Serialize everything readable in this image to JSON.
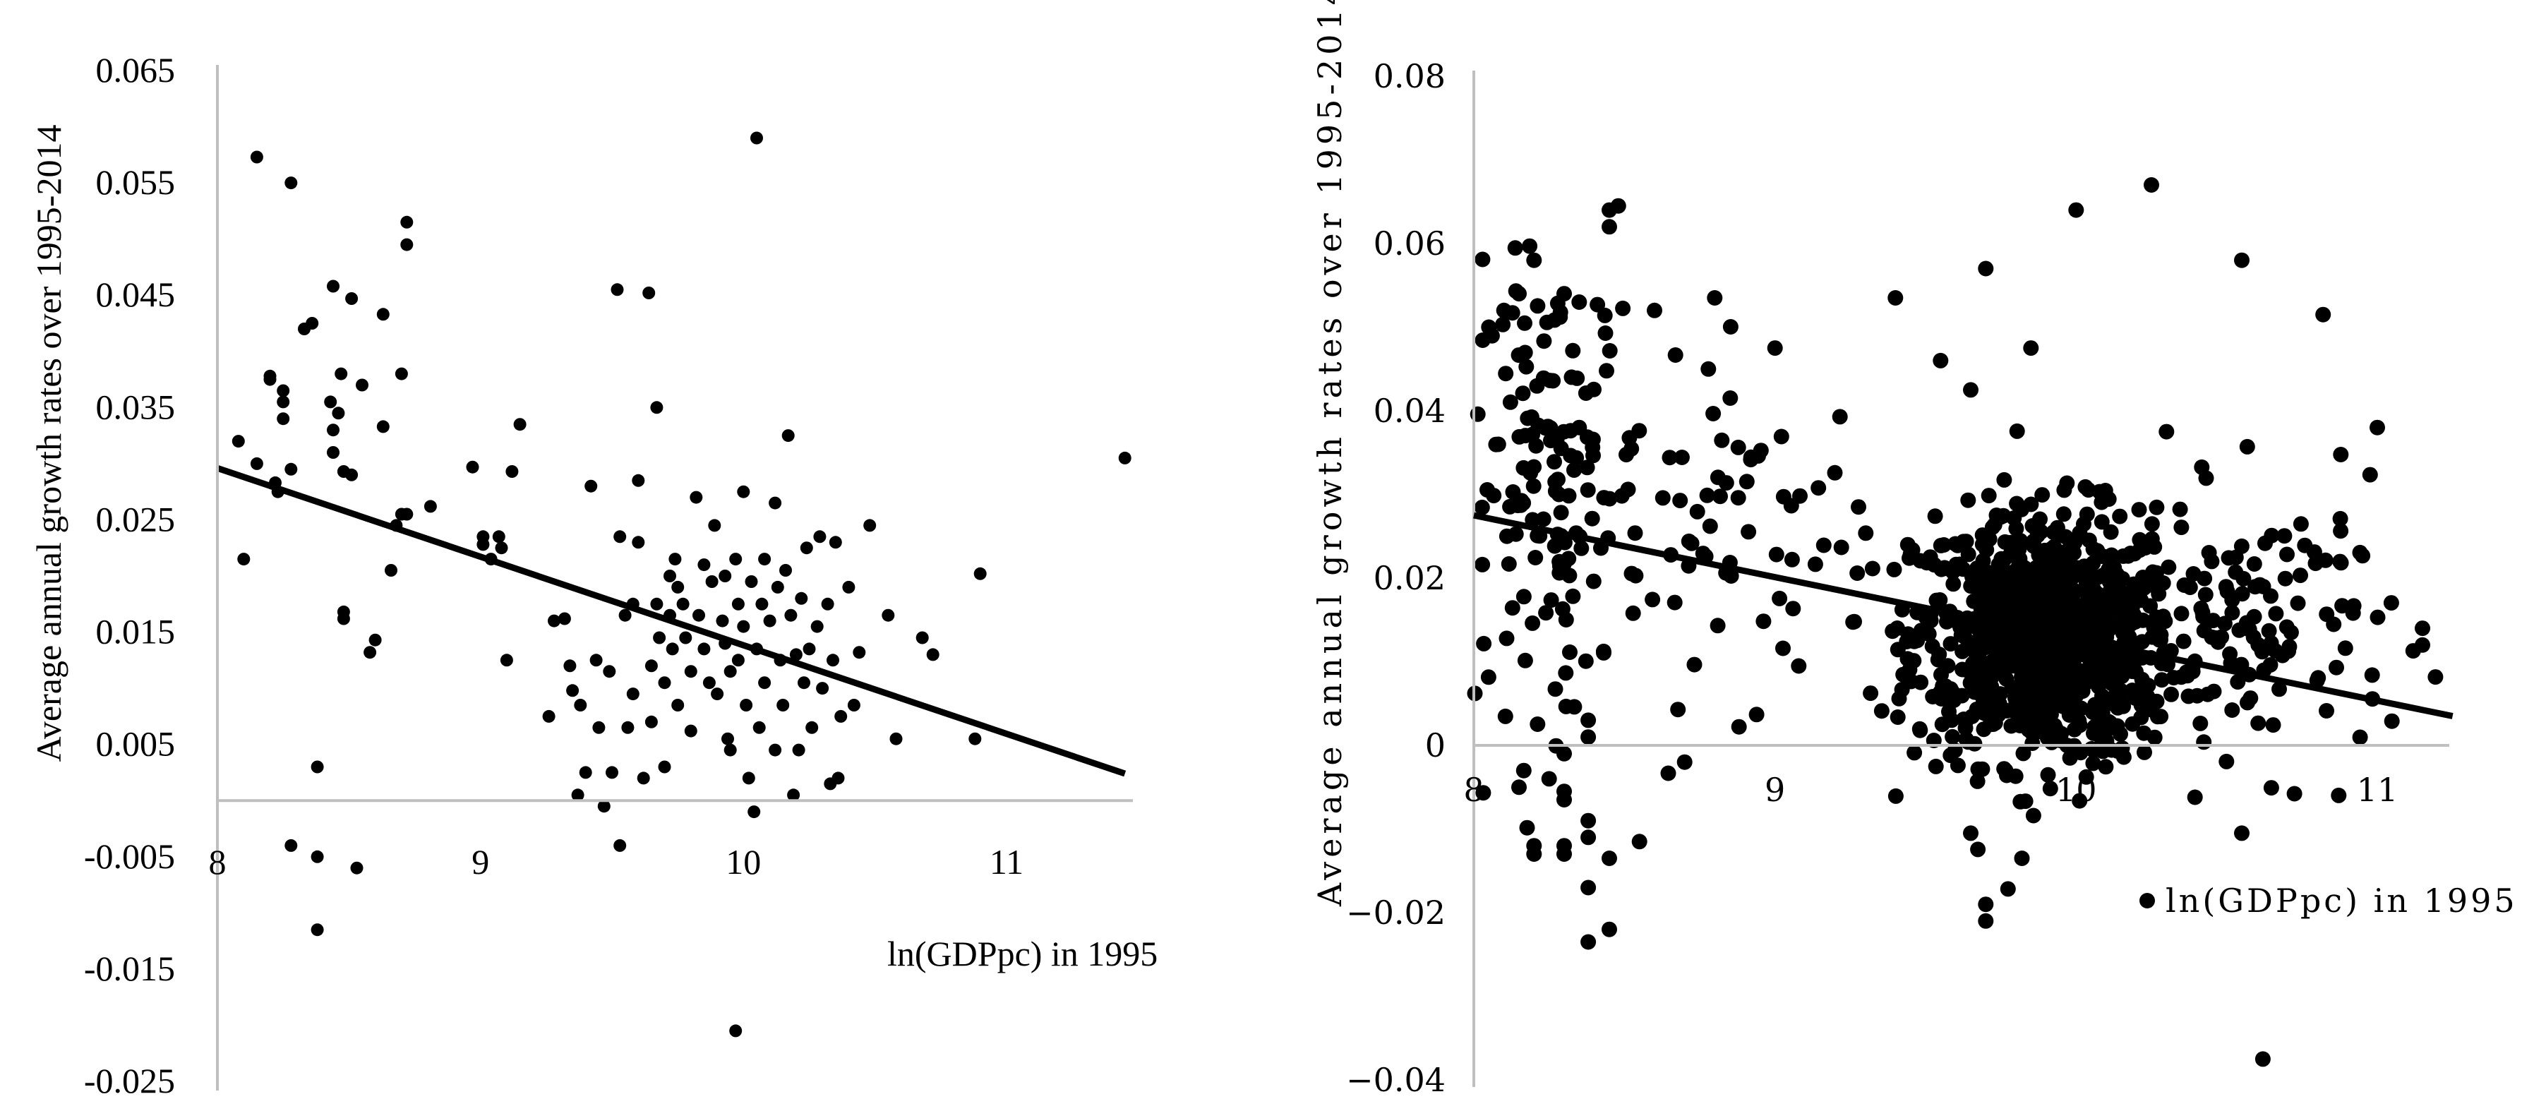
{
  "chart_data": [
    {
      "type": "scatter",
      "title": "",
      "xlabel": "ln(GDPpc) in 1995",
      "ylabel": "Average annual growth rates over 1995-2014",
      "xlim": [
        8,
        11.5
      ],
      "ylim": [
        -0.025,
        0.065
      ],
      "x_ticks": [
        "8",
        "9",
        "10",
        "11"
      ],
      "y_ticks": [
        "-0.025",
        "-0.015",
        "-0.005",
        "0.005",
        "0.015",
        "0.025",
        "0.035",
        "0.045",
        "0.055",
        "0.065"
      ],
      "grid": false,
      "legend": "none",
      "trendline": {
        "x": [
          8.0,
          11.45
        ],
        "y": [
          0.0296,
          0.0024
        ]
      },
      "colors": {
        "points": "#000000",
        "trendline": "#000000",
        "axis": "#bfbfbf"
      },
      "points": [
        [
          8.08,
          0.032
        ],
        [
          8.1,
          0.0215
        ],
        [
          8.15,
          0.0573
        ],
        [
          8.15,
          0.03
        ],
        [
          8.2,
          0.0378
        ],
        [
          8.2,
          0.0375
        ],
        [
          8.22,
          0.0283
        ],
        [
          8.23,
          0.0275
        ],
        [
          8.25,
          0.0365
        ],
        [
          8.25,
          0.0355
        ],
        [
          8.25,
          0.034
        ],
        [
          8.28,
          0.055
        ],
        [
          8.28,
          0.0295
        ],
        [
          8.28,
          -0.004
        ],
        [
          8.33,
          0.042
        ],
        [
          8.36,
          0.0425
        ],
        [
          8.38,
          0.003
        ],
        [
          8.38,
          -0.005
        ],
        [
          8.38,
          -0.0115
        ],
        [
          8.43,
          0.0355
        ],
        [
          8.44,
          0.0458
        ],
        [
          8.44,
          0.033
        ],
        [
          8.44,
          0.031
        ],
        [
          8.46,
          0.0345
        ],
        [
          8.47,
          0.038
        ],
        [
          8.48,
          0.0293
        ],
        [
          8.48,
          0.0168
        ],
        [
          8.48,
          0.0162
        ],
        [
          8.51,
          0.0447
        ],
        [
          8.51,
          0.029
        ],
        [
          8.53,
          -0.006
        ],
        [
          8.55,
          0.037
        ],
        [
          8.58,
          0.0132
        ],
        [
          8.6,
          0.0143
        ],
        [
          8.63,
          0.0433
        ],
        [
          8.63,
          0.0333
        ],
        [
          8.66,
          0.0205
        ],
        [
          8.68,
          0.0245
        ],
        [
          8.7,
          0.038
        ],
        [
          8.7,
          0.0255
        ],
        [
          8.72,
          0.0515
        ],
        [
          8.72,
          0.0495
        ],
        [
          8.72,
          0.0255
        ],
        [
          8.81,
          0.0262
        ],
        [
          8.97,
          0.0297
        ],
        [
          9.01,
          0.0235
        ],
        [
          9.01,
          0.0228
        ],
        [
          9.04,
          0.0215
        ],
        [
          9.07,
          0.0235
        ],
        [
          9.08,
          0.0225
        ],
        [
          9.1,
          0.0125
        ],
        [
          9.12,
          0.0293
        ],
        [
          9.15,
          0.0335
        ],
        [
          9.26,
          0.0075
        ],
        [
          9.28,
          0.016
        ],
        [
          9.32,
          0.0162
        ],
        [
          9.34,
          0.012
        ],
        [
          9.35,
          0.0098
        ],
        [
          9.37,
          0.0005
        ],
        [
          9.38,
          0.0085
        ],
        [
          9.4,
          0.0025
        ],
        [
          9.42,
          0.028
        ],
        [
          9.44,
          0.0125
        ],
        [
          9.45,
          0.0065
        ],
        [
          9.47,
          -0.0005
        ],
        [
          9.49,
          0.0115
        ],
        [
          9.5,
          0.0025
        ],
        [
          9.52,
          0.0455
        ],
        [
          9.53,
          0.0235
        ],
        [
          9.53,
          -0.004
        ],
        [
          9.55,
          0.0165
        ],
        [
          9.56,
          0.0065
        ],
        [
          9.58,
          0.0175
        ],
        [
          9.58,
          0.0095
        ],
        [
          9.6,
          0.0285
        ],
        [
          9.6,
          0.023
        ],
        [
          9.62,
          0.002
        ],
        [
          9.64,
          0.0452
        ],
        [
          9.65,
          0.012
        ],
        [
          9.65,
          0.007
        ],
        [
          9.67,
          0.035
        ],
        [
          9.67,
          0.0175
        ],
        [
          9.68,
          0.0145
        ],
        [
          9.7,
          0.0105
        ],
        [
          9.7,
          0.003
        ],
        [
          9.72,
          0.02
        ],
        [
          9.72,
          0.0165
        ],
        [
          9.73,
          0.0135
        ],
        [
          9.74,
          0.0215
        ],
        [
          9.75,
          0.019
        ],
        [
          9.75,
          0.0085
        ],
        [
          9.77,
          0.0175
        ],
        [
          9.78,
          0.0145
        ],
        [
          9.8,
          0.0115
        ],
        [
          9.8,
          0.0062
        ],
        [
          9.82,
          0.027
        ],
        [
          9.83,
          0.0165
        ],
        [
          9.85,
          0.021
        ],
        [
          9.85,
          0.0135
        ],
        [
          9.87,
          0.0105
        ],
        [
          9.88,
          0.0195
        ],
        [
          9.89,
          0.0245
        ],
        [
          9.9,
          0.0095
        ],
        [
          9.92,
          0.016
        ],
        [
          9.93,
          0.02
        ],
        [
          9.93,
          0.014
        ],
        [
          9.94,
          0.0055
        ],
        [
          9.95,
          0.0115
        ],
        [
          9.95,
          0.0045
        ],
        [
          9.97,
          0.0215
        ],
        [
          9.97,
          -0.0205
        ],
        [
          9.98,
          0.0175
        ],
        [
          9.98,
          0.0125
        ],
        [
          10.0,
          0.0275
        ],
        [
          10.0,
          0.0155
        ],
        [
          10.01,
          0.0085
        ],
        [
          10.02,
          0.002
        ],
        [
          10.03,
          0.0195
        ],
        [
          10.04,
          -0.001
        ],
        [
          10.05,
          0.059
        ],
        [
          10.05,
          0.0135
        ],
        [
          10.06,
          0.0065
        ],
        [
          10.07,
          0.0175
        ],
        [
          10.08,
          0.0215
        ],
        [
          10.08,
          0.0105
        ],
        [
          10.1,
          0.016
        ],
        [
          10.12,
          0.0265
        ],
        [
          10.12,
          0.0045
        ],
        [
          10.13,
          0.019
        ],
        [
          10.14,
          0.0125
        ],
        [
          10.15,
          0.0085
        ],
        [
          10.16,
          0.0205
        ],
        [
          10.17,
          0.0325
        ],
        [
          10.18,
          0.0165
        ],
        [
          10.19,
          0.0005
        ],
        [
          10.2,
          0.013
        ],
        [
          10.21,
          0.0045
        ],
        [
          10.22,
          0.018
        ],
        [
          10.23,
          0.0105
        ],
        [
          10.24,
          0.0225
        ],
        [
          10.25,
          0.0135
        ],
        [
          10.26,
          0.0065
        ],
        [
          10.28,
          0.0155
        ],
        [
          10.29,
          0.0235
        ],
        [
          10.3,
          0.01
        ],
        [
          10.32,
          0.0175
        ],
        [
          10.33,
          0.0015
        ],
        [
          10.34,
          0.0125
        ],
        [
          10.35,
          0.023
        ],
        [
          10.36,
          0.002
        ],
        [
          10.37,
          0.0075
        ],
        [
          10.4,
          0.019
        ],
        [
          10.42,
          0.0085
        ],
        [
          10.44,
          0.0132
        ],
        [
          10.48,
          0.0245
        ],
        [
          10.55,
          0.0165
        ],
        [
          10.58,
          0.0055
        ],
        [
          10.68,
          0.0145
        ],
        [
          10.72,
          0.013
        ],
        [
          10.88,
          0.0055
        ],
        [
          10.9,
          0.0202
        ],
        [
          11.45,
          0.0305
        ]
      ]
    },
    {
      "type": "scatter",
      "title": "",
      "xlabel": "",
      "ylabel": "Average annual growth rates over 1995-2014",
      "xlim": [
        8,
        11.25
      ],
      "ylim": [
        -0.04,
        0.08
      ],
      "x_ticks": [
        "8",
        "9",
        "10",
        "11"
      ],
      "y_ticks": [
        "−0.04",
        "−0.02",
        "0",
        "0.02",
        "0.04",
        "0.06",
        "0.08"
      ],
      "grid": false,
      "legend": "bottom-right",
      "legend_entries": [
        "ln(GDPpc) in 1995"
      ],
      "trendline": {
        "x": [
          8.0,
          11.25
        ],
        "y": [
          0.0275,
          0.0035
        ]
      },
      "colors": {
        "points": "#000000",
        "trendline": "#000000",
        "axis": "#bfbfbf"
      },
      "point_clusters": [
        {
          "cx": 9.9,
          "cy": 0.013,
          "sx": 0.22,
          "sy": 0.0075,
          "n": 950
        },
        {
          "cx": 8.25,
          "cy": 0.031,
          "sx": 0.16,
          "sy": 0.013,
          "n": 150
        },
        {
          "cx": 8.9,
          "cy": 0.026,
          "sx": 0.2,
          "sy": 0.01,
          "n": 60
        },
        {
          "cx": 10.65,
          "cy": 0.014,
          "sx": 0.2,
          "sy": 0.008,
          "n": 110
        }
      ],
      "points": [
        [
          8.05,
          0.05
        ],
        [
          8.1,
          0.052
        ],
        [
          8.15,
          0.054
        ],
        [
          8.2,
          0.058
        ],
        [
          8.3,
          0.054
        ],
        [
          8.35,
          0.038
        ],
        [
          8.45,
          0.064
        ],
        [
          8.48,
          0.0645
        ],
        [
          8.45,
          0.062
        ],
        [
          8.35,
          0.053
        ],
        [
          8.6,
          0.052
        ],
        [
          8.8,
          0.0535
        ],
        [
          9.0,
          0.0475
        ],
        [
          9.4,
          0.0535
        ],
        [
          9.55,
          0.046
        ],
        [
          9.65,
          0.0425
        ],
        [
          9.7,
          0.057
        ],
        [
          9.85,
          0.0475
        ],
        [
          10.0,
          0.064
        ],
        [
          10.25,
          0.067
        ],
        [
          10.3,
          0.0375
        ],
        [
          10.55,
          0.058
        ],
        [
          10.82,
          0.0515
        ],
        [
          11.0,
          0.038
        ],
        [
          11.15,
          0.014
        ],
        [
          11.15,
          0.012
        ],
        [
          8.15,
          -0.005
        ],
        [
          8.2,
          -0.012
        ],
        [
          8.2,
          -0.013
        ],
        [
          8.25,
          -0.004
        ],
        [
          8.3,
          -0.001
        ],
        [
          8.3,
          -0.0055
        ],
        [
          8.3,
          -0.0065
        ],
        [
          8.3,
          -0.012
        ],
        [
          8.3,
          -0.013
        ],
        [
          8.38,
          0.003
        ],
        [
          8.38,
          0.001
        ],
        [
          8.38,
          -0.009
        ],
        [
          8.38,
          -0.011
        ],
        [
          8.38,
          -0.017
        ],
        [
          8.38,
          -0.0235
        ],
        [
          8.45,
          -0.0135
        ],
        [
          8.45,
          -0.022
        ],
        [
          8.55,
          -0.0115
        ],
        [
          8.7,
          -0.002
        ],
        [
          9.65,
          -0.0105
        ],
        [
          9.7,
          -0.019
        ],
        [
          9.7,
          -0.021
        ],
        [
          9.82,
          -0.0135
        ],
        [
          10.55,
          -0.0105
        ],
        [
          10.62,
          -0.0375
        ]
      ]
    }
  ]
}
